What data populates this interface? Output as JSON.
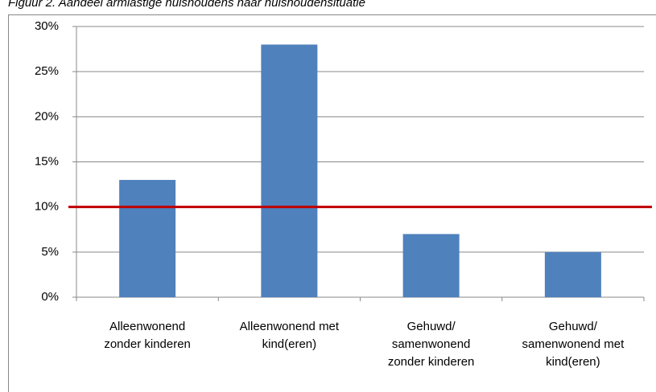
{
  "chart_data": {
    "type": "bar",
    "title": "Figuur 2. Aandeel armlastige huishoudens naar huishoudensituatie",
    "categories": [
      "Alleenwonend zonder kinderen",
      "Alleenwonend met kind(eren)",
      "Gehuwd/ samenwonend zonder kinderen",
      "Gehuwd/ samenwonend met kind(eren)"
    ],
    "values": [
      13,
      28,
      7,
      5
    ],
    "color": "#4f81bd",
    "ylim": [
      0,
      30
    ],
    "yticks": [
      {
        "value": 0,
        "label": "0%"
      },
      {
        "value": 5,
        "label": "5%"
      },
      {
        "value": 10,
        "label": "10%"
      },
      {
        "value": 15,
        "label": "15%"
      },
      {
        "value": 20,
        "label": "20%"
      },
      {
        "value": 25,
        "label": "25%"
      },
      {
        "value": 30,
        "label": "30%"
      }
    ],
    "grid": true,
    "reference_line": {
      "value": 10,
      "color": "#c00000"
    }
  }
}
